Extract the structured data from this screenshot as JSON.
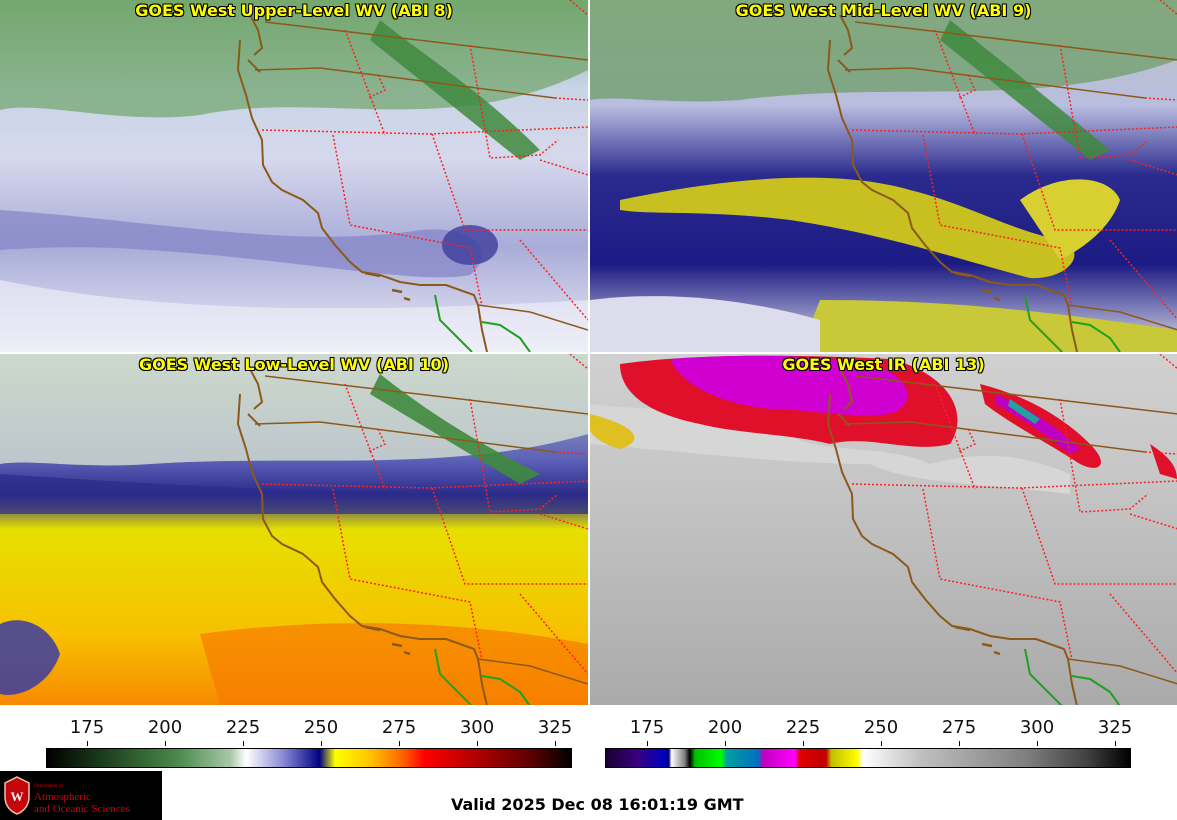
{
  "panels": [
    {
      "title": "GOES West Upper-Level WV (ABI 8)"
    },
    {
      "title": "GOES West Mid-Level WV (ABI 9)"
    },
    {
      "title": "GOES West Low-Level WV (ABI 10)"
    },
    {
      "title": "GOES West IR (ABI 13)"
    }
  ],
  "colorbars": [
    {
      "name": "water-vapor",
      "ticks": [
        "175",
        "200",
        "225",
        "250",
        "275",
        "300",
        "325"
      ]
    },
    {
      "name": "infrared",
      "ticks": [
        "175",
        "200",
        "225",
        "250",
        "275",
        "300",
        "325"
      ]
    }
  ],
  "logo": {
    "line1": "Department of",
    "line2": "Atmospheric",
    "line3": "and Oceanic Sciences"
  },
  "valid_time": "Valid 2025 Dec 08 16:01:19 GMT",
  "colors": {
    "state_border": "#ff2020",
    "coastline": "#8b5a1a",
    "mexico_border": "#20a020",
    "title_text": "#ffff00"
  }
}
